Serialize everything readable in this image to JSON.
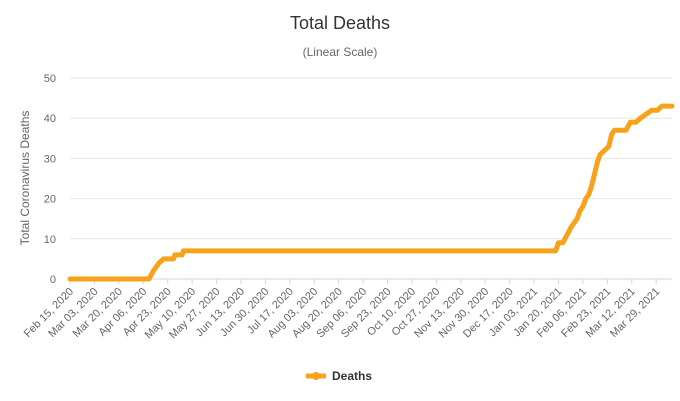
{
  "chart_data": {
    "type": "line",
    "title": "Total Deaths",
    "subtitle": "(Linear Scale)",
    "ylabel": "Total Coronavirus Deaths",
    "xlabel": "",
    "ylim": [
      0,
      50
    ],
    "yticks": [
      0,
      10,
      20,
      30,
      40,
      50
    ],
    "grid": true,
    "legend_position": "bottom-center",
    "x_tick_labels": [
      "Feb 15, 2020",
      "Mar 03, 2020",
      "Mar 20, 2020",
      "Apr 06, 2020",
      "Apr 23, 2020",
      "May 10, 2020",
      "May 27, 2020",
      "Jun 13, 2020",
      "Jun 30, 2020",
      "Jul 17, 2020",
      "Aug 03, 2020",
      "Aug 20, 2020",
      "Sep 06, 2020",
      "Sep 23, 2020",
      "Oct 10, 2020",
      "Oct 27, 2020",
      "Nov 13, 2020",
      "Nov 30, 2020",
      "Dec 17, 2020",
      "Jan 03, 2021",
      "Jan 20, 2021",
      "Feb 06, 2021",
      "Feb 23, 2021",
      "Mar 12, 2021",
      "Mar 29, 2021"
    ],
    "x_range": [
      "2020-02-15",
      "2021-04-09"
    ],
    "series": [
      {
        "name": "Deaths",
        "color": "#f7a21b",
        "points": [
          [
            "2020-02-15",
            0
          ],
          [
            "2020-04-10",
            0
          ],
          [
            "2020-04-13",
            2
          ],
          [
            "2020-04-15",
            3
          ],
          [
            "2020-04-17",
            4
          ],
          [
            "2020-04-20",
            5
          ],
          [
            "2020-04-27",
            5
          ],
          [
            "2020-04-28",
            6
          ],
          [
            "2020-05-03",
            6
          ],
          [
            "2020-05-04",
            7
          ],
          [
            "2021-01-18",
            7
          ],
          [
            "2021-01-20",
            9
          ],
          [
            "2021-01-23",
            9
          ],
          [
            "2021-01-26",
            11
          ],
          [
            "2021-01-29",
            13
          ],
          [
            "2021-01-31",
            14
          ],
          [
            "2021-02-02",
            15
          ],
          [
            "2021-02-04",
            17
          ],
          [
            "2021-02-06",
            18
          ],
          [
            "2021-02-08",
            20
          ],
          [
            "2021-02-10",
            21
          ],
          [
            "2021-02-12",
            23
          ],
          [
            "2021-02-14",
            26
          ],
          [
            "2021-02-16",
            29
          ],
          [
            "2021-02-18",
            31
          ],
          [
            "2021-02-21",
            32
          ],
          [
            "2021-02-24",
            33
          ],
          [
            "2021-02-26",
            36
          ],
          [
            "2021-02-28",
            37
          ],
          [
            "2021-03-08",
            37
          ],
          [
            "2021-03-11",
            39
          ],
          [
            "2021-03-15",
            39
          ],
          [
            "2021-03-18",
            40
          ],
          [
            "2021-03-22",
            41
          ],
          [
            "2021-03-26",
            42
          ],
          [
            "2021-03-30",
            42
          ],
          [
            "2021-04-02",
            43
          ],
          [
            "2021-04-09",
            43
          ]
        ]
      }
    ]
  }
}
